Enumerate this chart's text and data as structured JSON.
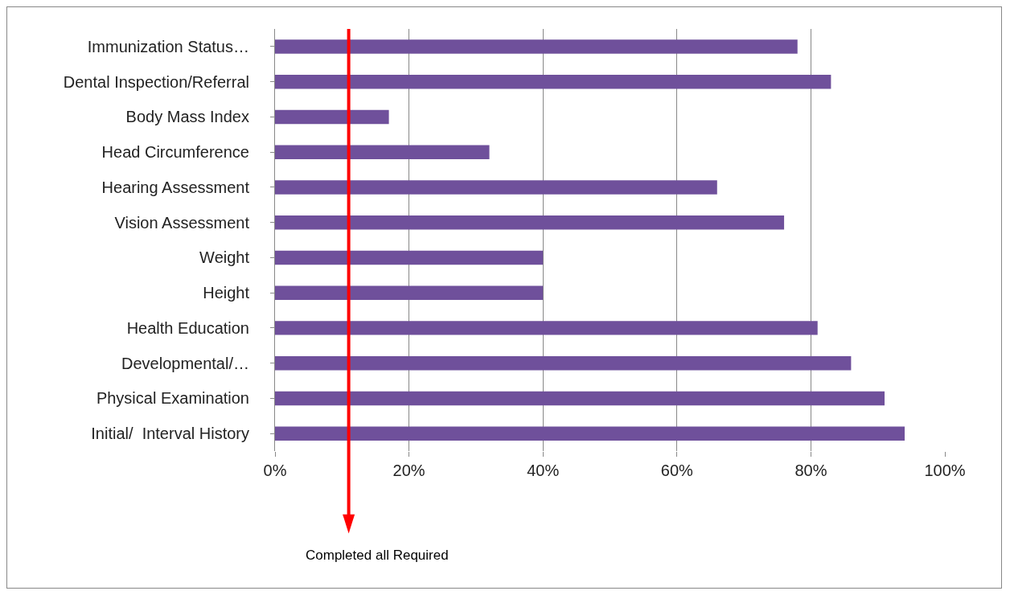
{
  "chart_data": {
    "type": "bar",
    "orientation": "horizontal",
    "categories": [
      "Immunization Status…",
      "Dental Inspection/Referral",
      "Body Mass Index",
      "Head Circumference",
      "Hearing Assessment",
      "Vision Assessment",
      "Weight",
      "Height",
      "Health Education",
      "Developmental/…",
      "Physical Examination",
      "Initial/  Interval History"
    ],
    "values": [
      78,
      83,
      17,
      32,
      66,
      76,
      40,
      40,
      81,
      86,
      91,
      94
    ],
    "color": "#6f509b",
    "xlim": [
      0,
      100
    ],
    "xticks": [
      {
        "value": 0,
        "label": "0%"
      },
      {
        "value": 20,
        "label": "20%"
      },
      {
        "value": 40,
        "label": "40%"
      },
      {
        "value": 60,
        "label": "60%"
      },
      {
        "value": 80,
        "label": "80%"
      },
      {
        "value": 100,
        "label": "100%"
      }
    ],
    "grid": "x",
    "ref_lines": [
      {
        "axis": "x",
        "value": 11,
        "label": "Completed all Required",
        "color": "#ff0000"
      }
    ]
  }
}
